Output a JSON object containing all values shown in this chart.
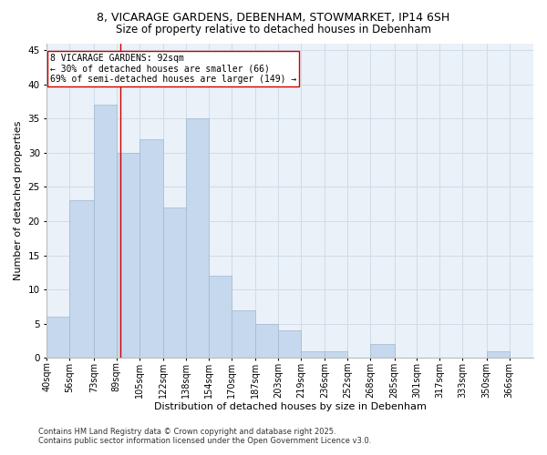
{
  "title_line1": "8, VICARAGE GARDENS, DEBENHAM, STOWMARKET, IP14 6SH",
  "title_line2": "Size of property relative to detached houses in Debenham",
  "xlabel": "Distribution of detached houses by size in Debenham",
  "ylabel": "Number of detached properties",
  "categories": [
    "40sqm",
    "56sqm",
    "73sqm",
    "89sqm",
    "105sqm",
    "122sqm",
    "138sqm",
    "154sqm",
    "170sqm",
    "187sqm",
    "203sqm",
    "219sqm",
    "236sqm",
    "252sqm",
    "268sqm",
    "285sqm",
    "301sqm",
    "317sqm",
    "333sqm",
    "350sqm",
    "366sqm"
  ],
  "values": [
    6,
    23,
    37,
    30,
    32,
    22,
    35,
    12,
    7,
    5,
    4,
    1,
    1,
    0,
    2,
    0,
    0,
    0,
    0,
    1,
    0
  ],
  "bar_color": "#c5d8ed",
  "bar_edge_color": "#a0b8d0",
  "grid_color": "#d0dce8",
  "background_color": "#eaf1f8",
  "vline_x": 92,
  "vline_color": "#cc0000",
  "annotation_text": "8 VICARAGE GARDENS: 92sqm\n← 30% of detached houses are smaller (66)\n69% of semi-detached houses are larger (149) →",
  "annotation_box_color": "#ffffff",
  "annotation_box_edge_color": "#cc0000",
  "ylim": [
    0,
    46
  ],
  "yticks": [
    0,
    5,
    10,
    15,
    20,
    25,
    30,
    35,
    40,
    45
  ],
  "footnote_line1": "Contains HM Land Registry data © Crown copyright and database right 2025.",
  "footnote_line2": "Contains public sector information licensed under the Open Government Licence v3.0."
}
